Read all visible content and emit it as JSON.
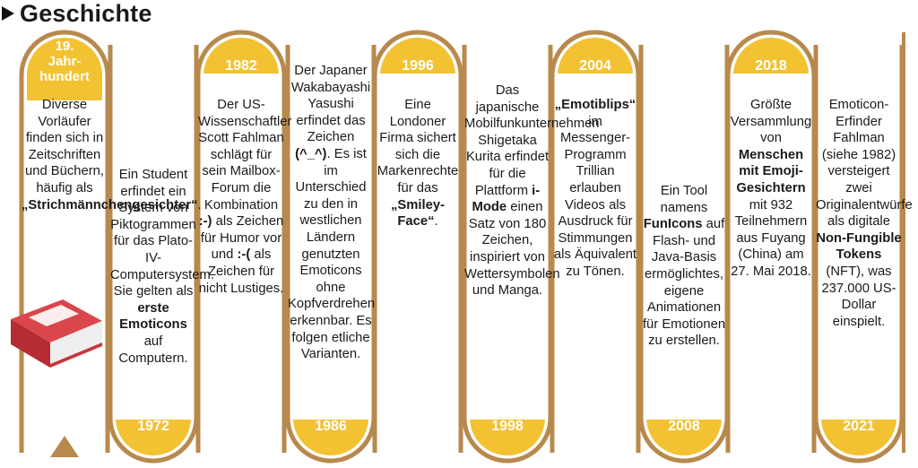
{
  "header": {
    "title": "Geschichte",
    "arrow_icon": "triangle-right-icon"
  },
  "colors": {
    "band": "#b8894d",
    "fill": "#f2c233",
    "label": "#ffffff",
    "stroke": "#ffffff",
    "book": "#c9363c"
  },
  "timeline": {
    "top_labels": [
      "19. Jahrhundert",
      "1982",
      "1996",
      "2004",
      "2018"
    ],
    "bottom_labels": [
      "1972",
      "1986",
      "1998",
      "2008",
      "2021"
    ]
  },
  "entries": [
    {
      "segments": [
        {
          "t": "Diverse Vorläufer finden sich in Zeitschriften und Büchern, häufig als ",
          "b": false
        },
        {
          "t": "„Strichmännchengesichter“",
          "b": true
        },
        {
          "t": ".",
          "b": false
        }
      ]
    },
    {
      "segments": [
        {
          "t": "Ein Student erfindet ein System von Piktogrammen für das Plato-IV-Computersystem. Sie gelten als ",
          "b": false
        },
        {
          "t": "erste Emoticons",
          "b": true
        },
        {
          "t": " auf Computern.",
          "b": false
        }
      ]
    },
    {
      "segments": [
        {
          "t": "Der US-Wissenschaftler Scott Fahlman schlägt für sein Mailbox-Forum die Kombination ",
          "b": false
        },
        {
          "t": ":-)",
          "b": true
        },
        {
          "t": " als Zeichen für Humor vor und ",
          "b": false
        },
        {
          "t": ":-(",
          "b": true
        },
        {
          "t": " als Zeichen für nicht Lustiges.",
          "b": false
        }
      ]
    },
    {
      "segments": [
        {
          "t": "Der Japaner Wakabayashi Yasushi erfindet das Zeichen ",
          "b": false
        },
        {
          "t": "(^_^)",
          "b": true
        },
        {
          "t": ". Es ist im Unterschied zu den in westlichen Ländern genutzten Emoticons ohne Kopfverdrehen erkennbar. Es folgen etliche Varianten.",
          "b": false
        }
      ]
    },
    {
      "segments": [
        {
          "t": "Eine Londoner Firma sichert sich die Markenrechte für das ",
          "b": false
        },
        {
          "t": "„Smiley-Face“",
          "b": true
        },
        {
          "t": ".",
          "b": false
        }
      ]
    },
    {
      "segments": [
        {
          "t": "Das japanische Mobilfunkunternehmen Shigetaka Kurita erfindet für die Plattform ",
          "b": false
        },
        {
          "t": "i-Mode",
          "b": true
        },
        {
          "t": " einen Satz von 180 Zeichen, inspiriert von Wettersymbolen und Manga.",
          "b": false
        }
      ]
    },
    {
      "segments": [
        {
          "t": "„Emotiblips“",
          "b": true
        },
        {
          "t": " im Messenger-Programm Trillian erlauben Videos als Ausdruck für Stimmungen als Äquivalent zu Tönen.",
          "b": false
        }
      ]
    },
    {
      "segments": [
        {
          "t": "Ein Tool namens ",
          "b": false
        },
        {
          "t": "FunIcons",
          "b": true
        },
        {
          "t": " auf Flash- und Java-Basis ermöglichtes, eigene Animationen für Emotionen zu erstellen.",
          "b": false
        }
      ]
    },
    {
      "segments": [
        {
          "t": "Größte Versammlung von ",
          "b": false
        },
        {
          "t": "Menschen mit Emoji-Gesichtern",
          "b": true
        },
        {
          "t": " mit 932 Teilnehmern aus Fuyang (China) am 27. Mai 2018.",
          "b": false
        }
      ]
    },
    {
      "segments": [
        {
          "t": "Emoticon-Erfinder Fahlman (siehe 1982) versteigert zwei Originalentwürfe als digitale ",
          "b": false
        },
        {
          "t": "Non-Fungible Tokens",
          "b": true
        },
        {
          "t": " (NFT), was 237.000 US-Dollar einspielt.",
          "b": false
        }
      ]
    }
  ]
}
